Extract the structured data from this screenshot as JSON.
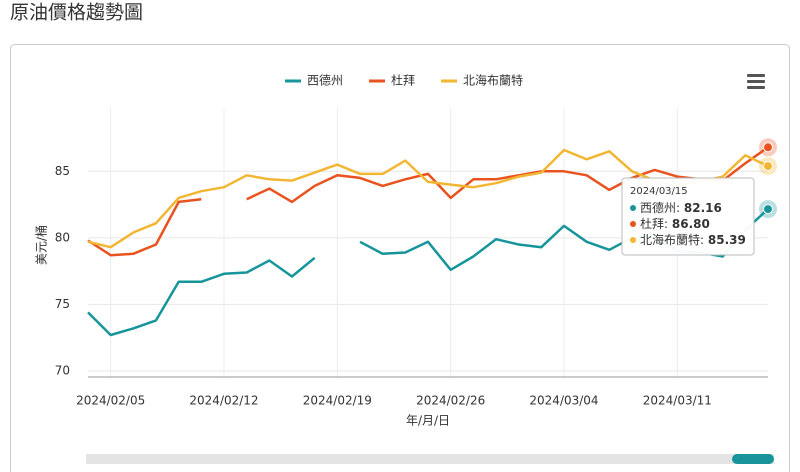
{
  "page_title": "原油價格趨勢圖",
  "chart_data": {
    "type": "line",
    "categories": [
      null,
      "2024/02/05",
      null,
      null,
      null,
      null,
      "2024/02/12",
      null,
      null,
      null,
      null,
      "2024/02/19",
      null,
      null,
      null,
      null,
      "2024/02/26",
      null,
      null,
      null,
      null,
      "2024/03/04",
      null,
      null,
      null,
      null,
      "2024/03/11",
      null,
      null,
      null,
      null
    ],
    "series": [
      {
        "name": "西德州",
        "color": "#17959a",
        "values": [
          74.4,
          72.7,
          73.2,
          73.8,
          76.7,
          76.7,
          77.3,
          77.4,
          78.3,
          77.1,
          78.5,
          null,
          79.7,
          78.8,
          78.9,
          79.7,
          77.6,
          78.6,
          79.9,
          79.5,
          79.3,
          80.9,
          79.7,
          79.1,
          80.0,
          80.2,
          79.0,
          78.9,
          78.6,
          80.6,
          82.16
        ]
      },
      {
        "name": "杜拜",
        "color": "#e8531f",
        "values": [
          79.8,
          78.7,
          78.8,
          79.5,
          82.7,
          82.9,
          null,
          82.9,
          83.7,
          82.7,
          83.9,
          84.7,
          84.5,
          83.9,
          84.4,
          84.8,
          83.0,
          84.4,
          84.4,
          84.7,
          85.0,
          85.0,
          84.7,
          83.6,
          84.5,
          85.1,
          84.6,
          84.4,
          84.3,
          85.6,
          86.8
        ]
      },
      {
        "name": "北海布蘭特",
        "color": "#f2b632",
        "values": [
          79.7,
          79.3,
          80.4,
          81.1,
          83.0,
          83.5,
          83.8,
          84.7,
          84.4,
          84.3,
          84.9,
          85.5,
          84.8,
          84.8,
          85.8,
          84.2,
          84.0,
          83.8,
          84.1,
          84.6,
          84.9,
          86.6,
          85.9,
          86.5,
          85.0,
          84.3,
          84.0,
          84.2,
          84.6,
          86.2,
          85.39
        ]
      }
    ],
    "ylabel": "美元/桶",
    "xlabel": "年/月/日",
    "ylim": [
      70,
      89
    ],
    "yticks": [
      70,
      75,
      80,
      85
    ],
    "grid": true,
    "tooltip": {
      "title": "2024/03/15",
      "labels": [
        "82.16",
        "86.80",
        "85.39"
      ]
    }
  }
}
